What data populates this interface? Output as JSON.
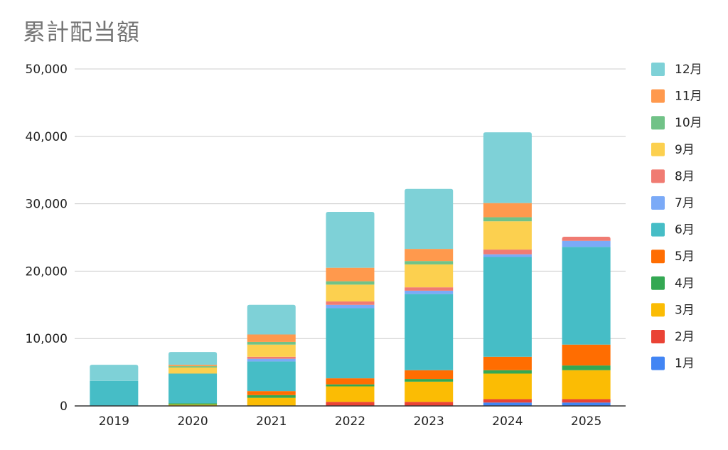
{
  "chart_data": {
    "type": "bar",
    "stacked": true,
    "title": "累計配当額",
    "xlabel": "",
    "ylabel": "",
    "ylim": [
      0,
      50000
    ],
    "yticks": [
      "0",
      "10,000",
      "20,000",
      "30,000",
      "40,000",
      "50,000"
    ],
    "grid": true,
    "legend_position": "right",
    "categories": [
      "2019",
      "2020",
      "2021",
      "2022",
      "2023",
      "2024",
      "2025"
    ],
    "series": [
      {
        "name": "1月",
        "color": "#4285f4",
        "values": [
          0,
          0,
          0,
          0,
          0,
          500,
          500
        ]
      },
      {
        "name": "2月",
        "color": "#ea4335",
        "values": [
          0,
          0,
          0,
          600,
          600,
          500,
          500
        ]
      },
      {
        "name": "3月",
        "color": "#fbbc04",
        "values": [
          0,
          200,
          1200,
          2300,
          3000,
          3800,
          4300
        ]
      },
      {
        "name": "4月",
        "color": "#34a853",
        "values": [
          0,
          200,
          400,
          300,
          400,
          500,
          700
        ]
      },
      {
        "name": "5月",
        "color": "#ff6d01",
        "values": [
          0,
          0,
          600,
          900,
          1300,
          2000,
          3100
        ]
      },
      {
        "name": "6月",
        "color": "#46bdc6",
        "values": [
          3700,
          4400,
          4400,
          10400,
          11300,
          14800,
          14500
        ]
      },
      {
        "name": "7月",
        "color": "#7baaf7",
        "values": [
          0,
          0,
          400,
          500,
          500,
          400,
          900
        ]
      },
      {
        "name": "8月",
        "color": "#f07b72",
        "values": [
          0,
          0,
          300,
          500,
          500,
          700,
          600
        ]
      },
      {
        "name": "9月",
        "color": "#fcd04f",
        "values": [
          0,
          900,
          1800,
          2500,
          3400,
          4200,
          0
        ]
      },
      {
        "name": "10月",
        "color": "#71c287",
        "values": [
          0,
          200,
          400,
          500,
          500,
          600,
          0
        ]
      },
      {
        "name": "11月",
        "color": "#ff994d",
        "values": [
          0,
          200,
          1100,
          2000,
          1800,
          2100,
          0
        ]
      },
      {
        "name": "12月",
        "color": "#7ed1d7",
        "values": [
          2400,
          1900,
          4400,
          8300,
          8900,
          10500,
          0
        ]
      }
    ]
  }
}
